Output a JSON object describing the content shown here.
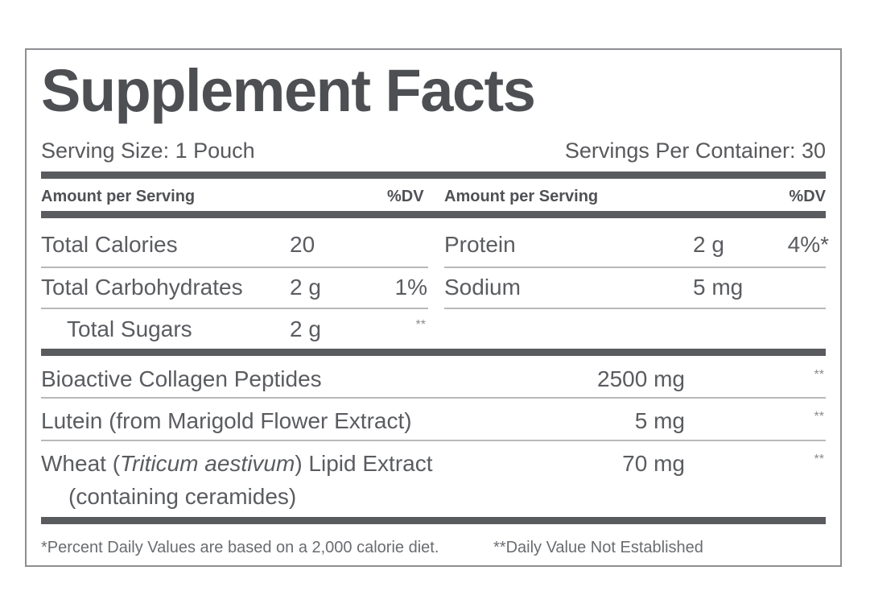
{
  "title": "Supplement Facts",
  "serving_size": "Serving Size: 1 Pouch",
  "servings_per_container": "Servings Per Container: 30",
  "header": {
    "left_amount": "Amount per Serving",
    "left_dv": "%DV",
    "right_amount": "Amount per Serving",
    "right_dv": "%DV"
  },
  "left_nutrients": [
    {
      "name": "Total Calories",
      "amount": "20",
      "dv": ""
    },
    {
      "name": "Total Carbohydrates",
      "amount": "2 g",
      "dv": "1%"
    },
    {
      "name": "Total Sugars",
      "amount": "2 g",
      "dv": "**"
    }
  ],
  "right_nutrients": [
    {
      "name": "Protein",
      "amount": "2 g",
      "dv": "4%*"
    },
    {
      "name": "Sodium",
      "amount": "5 mg",
      "dv": ""
    }
  ],
  "ingredients": [
    {
      "name": "Bioactive Collagen Peptides",
      "amount": "2500 mg",
      "dv": "**"
    },
    {
      "name": "Lutein (from Marigold Flower Extract)",
      "amount": "5 mg",
      "dv": "**"
    },
    {
      "name_prefix": "Wheat (",
      "name_italic": "Triticum aestivum",
      "name_suffix": ") Lipid Extract",
      "name_line2": "(containing ceramides)",
      "amount": "70 mg",
      "dv": "**"
    }
  ],
  "footnotes": {
    "percent_dv": "*Percent Daily Values are based on a 2,000 calorie diet.",
    "not_established": "**Daily Value Not Established"
  },
  "colors": {
    "text": "#55575b",
    "bar": "#595b5f",
    "rule": "#b7b8ba",
    "border": "#8e8f92"
  }
}
